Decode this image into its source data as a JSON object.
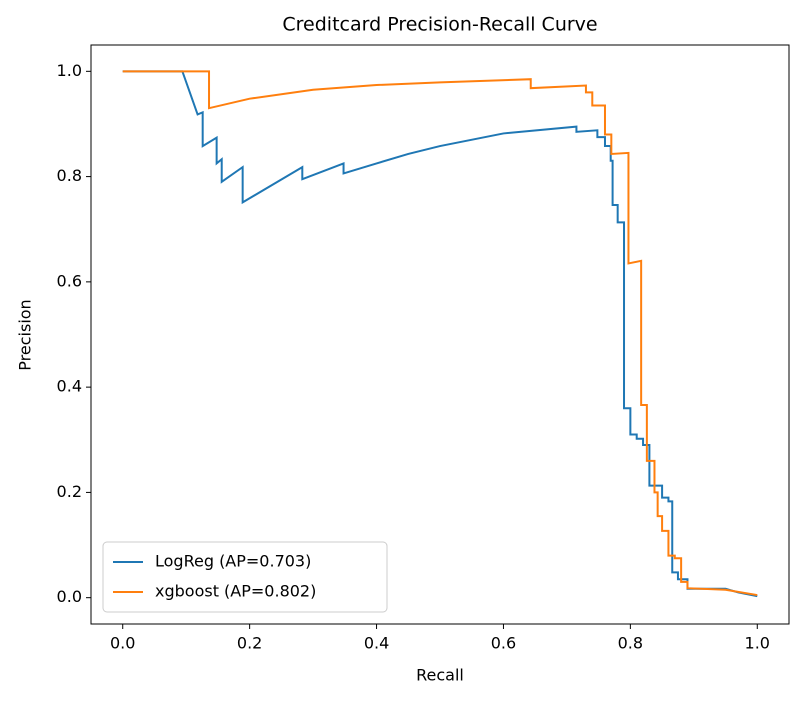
{
  "chart_data": {
    "type": "line",
    "title": "Creditcard Precision-Recall Curve",
    "x_label": "Recall",
    "y_label": "Precision",
    "xlim": [
      -0.05,
      1.05
    ],
    "ylim": [
      -0.05,
      1.05
    ],
    "xticks": [
      {
        "value": 0,
        "label": "0.0"
      },
      0.2,
      0.4,
      0.6,
      0.8,
      {
        "value": 1,
        "label": "1.0"
      }
    ],
    "yticks": [
      {
        "value": 0,
        "label": "0.0"
      },
      0.2,
      0.4,
      0.6,
      0.8,
      {
        "value": 1,
        "label": "1.0"
      }
    ],
    "legend": "lower left",
    "series": [
      {
        "name": "LogReg (AP=0.703)",
        "color": "#1f77b4",
        "x": [
          0,
          0.094,
          0.118,
          0.126,
          0.126,
          0.148,
          0.148,
          0.156,
          0.156,
          0.189,
          0.189,
          0.283,
          0.283,
          0.348,
          0.348,
          0.4,
          0.45,
          0.5,
          0.6,
          0.715,
          0.715,
          0.748,
          0.748,
          0.76,
          0.76,
          0.769,
          0.769,
          0.772,
          0.772,
          0.78,
          0.78,
          0.79,
          0.79,
          0.8,
          0.8,
          0.81,
          0.81,
          0.82,
          0.82,
          0.83,
          0.83,
          0.85,
          0.85,
          0.86,
          0.86,
          0.866,
          0.866,
          0.875,
          0.875,
          0.89,
          0.89,
          0.95,
          0.97,
          1.0
        ],
        "values": [
          1,
          1,
          0.918,
          0.922,
          0.858,
          0.874,
          0.825,
          0.833,
          0.79,
          0.818,
          0.751,
          0.818,
          0.795,
          0.825,
          0.806,
          0.825,
          0.843,
          0.858,
          0.882,
          0.895,
          0.885,
          0.888,
          0.875,
          0.875,
          0.858,
          0.858,
          0.83,
          0.83,
          0.746,
          0.746,
          0.713,
          0.713,
          0.36,
          0.36,
          0.31,
          0.31,
          0.302,
          0.302,
          0.29,
          0.29,
          0.213,
          0.213,
          0.19,
          0.19,
          0.183,
          0.183,
          0.048,
          0.048,
          0.035,
          0.035,
          0.017,
          0.017,
          0.01,
          0.003
        ]
      },
      {
        "name": "xgboost (AP=0.802)",
        "color": "#ff7f0e",
        "x": [
          0,
          0.136,
          0.136,
          0.2,
          0.3,
          0.4,
          0.5,
          0.643,
          0.643,
          0.73,
          0.73,
          0.74,
          0.74,
          0.76,
          0.76,
          0.77,
          0.77,
          0.797,
          0.797,
          0.817,
          0.817,
          0.826,
          0.826,
          0.838,
          0.838,
          0.843,
          0.843,
          0.85,
          0.85,
          0.86,
          0.86,
          0.87,
          0.87,
          0.88,
          0.88,
          0.89,
          0.89,
          0.95,
          1.0
        ],
        "values": [
          1,
          1,
          0.93,
          0.948,
          0.965,
          0.974,
          0.979,
          0.985,
          0.968,
          0.973,
          0.96,
          0.96,
          0.935,
          0.935,
          0.88,
          0.88,
          0.843,
          0.845,
          0.635,
          0.64,
          0.366,
          0.366,
          0.26,
          0.26,
          0.2,
          0.2,
          0.155,
          0.155,
          0.127,
          0.127,
          0.08,
          0.08,
          0.075,
          0.075,
          0.03,
          0.03,
          0.018,
          0.015,
          0.005
        ]
      }
    ]
  }
}
